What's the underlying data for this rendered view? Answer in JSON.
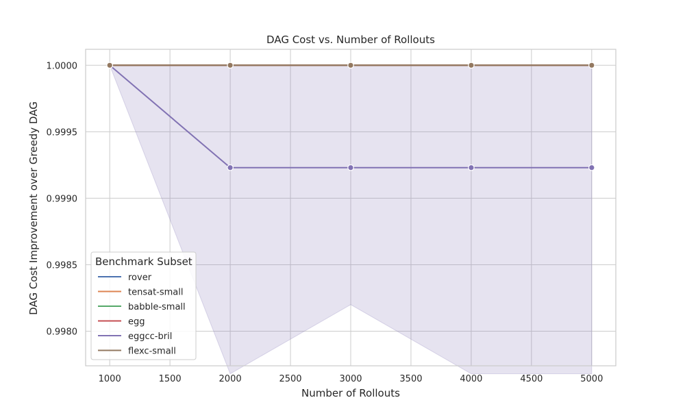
{
  "chart_data": {
    "type": "line",
    "title": "DAG Cost vs. Number of Rollouts",
    "xlabel": "Number of Rollouts",
    "ylabel": "DAG Cost Improvement over Greedy DAG",
    "xlim": [
      800,
      5200
    ],
    "ylim": [
      0.99774,
      1.00012
    ],
    "x_ticks": [
      1000,
      1500,
      2000,
      2500,
      3000,
      3500,
      4000,
      4500,
      5000
    ],
    "y_ticks": [
      0.998,
      0.9985,
      0.999,
      0.9995,
      1.0
    ],
    "y_tick_labels": [
      "0.9980",
      "0.9985",
      "0.9990",
      "0.9995",
      "1.0000"
    ],
    "grid": true,
    "legend": {
      "title": "Benchmark Subset",
      "placement": "lower-left"
    },
    "x": [
      1000,
      2000,
      3000,
      4000,
      5000
    ],
    "series": [
      {
        "name": "rover",
        "color": "#4c72b0",
        "values": [
          1.0,
          1.0,
          1.0,
          1.0,
          1.0
        ],
        "markers": false
      },
      {
        "name": "tensat-small",
        "color": "#dd8452",
        "values": [
          1.0,
          1.0,
          1.0,
          1.0,
          1.0
        ],
        "markers": false
      },
      {
        "name": "babble-small",
        "color": "#55a868",
        "values": [
          1.0,
          1.0,
          1.0,
          1.0,
          1.0
        ],
        "markers": false
      },
      {
        "name": "egg",
        "color": "#c44e52",
        "values": [
          1.0,
          1.0,
          1.0,
          1.0,
          1.0
        ],
        "markers": false
      },
      {
        "name": "eggcc-bril",
        "color": "#8172b3",
        "values": [
          1.0,
          0.99923,
          0.99923,
          0.99923,
          0.99923
        ],
        "markers": true,
        "ci_lower": [
          1.0,
          0.99768,
          0.9982,
          0.99768,
          0.99768
        ],
        "ci_upper": [
          1.0,
          1.0,
          1.0,
          1.0,
          1.0
        ]
      },
      {
        "name": "flexc-small",
        "color": "#937860",
        "values": [
          1.0,
          1.0,
          1.0,
          1.0,
          1.0
        ],
        "markers": true
      }
    ]
  }
}
